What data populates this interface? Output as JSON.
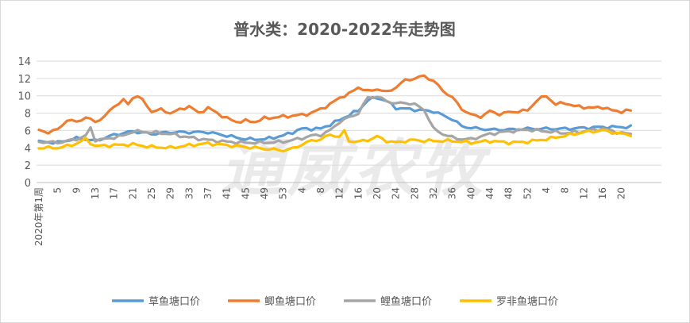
{
  "chart_data": {
    "type": "line",
    "title": "普水类：2020-2022年走势图",
    "watermark": "通威农牧",
    "first_week_label": "2020年第1周",
    "ylim": [
      0,
      14
    ],
    "yticks": [
      0,
      2,
      4,
      6,
      8,
      10,
      12,
      14
    ],
    "grid": true,
    "legend_position": "bottom",
    "num_points": 133,
    "x_tick_labels": [
      {
        "i": 0,
        "label": "2020年第1周"
      },
      {
        "i": 4,
        "label": "5"
      },
      {
        "i": 8,
        "label": "9"
      },
      {
        "i": 12,
        "label": "13"
      },
      {
        "i": 16,
        "label": "17"
      },
      {
        "i": 20,
        "label": "21"
      },
      {
        "i": 24,
        "label": "25"
      },
      {
        "i": 28,
        "label": "29"
      },
      {
        "i": 32,
        "label": "33"
      },
      {
        "i": 36,
        "label": "37"
      },
      {
        "i": 40,
        "label": "41"
      },
      {
        "i": 44,
        "label": "45"
      },
      {
        "i": 48,
        "label": "49"
      },
      {
        "i": 52,
        "label": "53"
      },
      {
        "i": 56,
        "label": "4"
      },
      {
        "i": 60,
        "label": "8"
      },
      {
        "i": 64,
        "label": "12"
      },
      {
        "i": 68,
        "label": "16"
      },
      {
        "i": 72,
        "label": "20"
      },
      {
        "i": 76,
        "label": "24"
      },
      {
        "i": 80,
        "label": "28"
      },
      {
        "i": 84,
        "label": "32"
      },
      {
        "i": 88,
        "label": "36"
      },
      {
        "i": 92,
        "label": "40"
      },
      {
        "i": 96,
        "label": "44"
      },
      {
        "i": 100,
        "label": "48"
      },
      {
        "i": 104,
        "label": "52"
      },
      {
        "i": 108,
        "label": "4"
      },
      {
        "i": 112,
        "label": "8"
      },
      {
        "i": 116,
        "label": "12"
      },
      {
        "i": 120,
        "label": "16"
      },
      {
        "i": 124,
        "label": "20"
      }
    ],
    "series": [
      {
        "name": "草鱼塘口价",
        "color": "#5b9bd5",
        "anchors": [
          [
            0,
            4.7
          ],
          [
            4,
            4.6
          ],
          [
            8,
            5.1
          ],
          [
            10,
            5.0
          ],
          [
            12,
            4.8
          ],
          [
            16,
            5.5
          ],
          [
            20,
            5.9
          ],
          [
            24,
            5.6
          ],
          [
            28,
            5.8
          ],
          [
            32,
            5.8
          ],
          [
            36,
            5.8
          ],
          [
            40,
            5.4
          ],
          [
            44,
            5.0
          ],
          [
            48,
            5.0
          ],
          [
            52,
            5.4
          ],
          [
            56,
            6.2
          ],
          [
            60,
            6.2
          ],
          [
            64,
            7.2
          ],
          [
            66,
            7.8
          ],
          [
            68,
            8.3
          ],
          [
            70,
            9.5
          ],
          [
            72,
            9.8
          ],
          [
            74,
            9.4
          ],
          [
            76,
            8.6
          ],
          [
            80,
            8.4
          ],
          [
            84,
            8.2
          ],
          [
            88,
            7.3
          ],
          [
            90,
            6.5
          ],
          [
            92,
            6.3
          ],
          [
            96,
            6.1
          ],
          [
            100,
            6.1
          ],
          [
            104,
            6.2
          ],
          [
            108,
            6.2
          ],
          [
            112,
            6.2
          ],
          [
            116,
            6.3
          ],
          [
            120,
            6.4
          ],
          [
            124,
            6.4
          ],
          [
            126,
            6.4
          ]
        ]
      },
      {
        "name": "鲫鱼塘口价",
        "color": "#ed7d31",
        "anchors": [
          [
            0,
            6.0
          ],
          [
            2,
            5.8
          ],
          [
            4,
            6.1
          ],
          [
            6,
            7.2
          ],
          [
            8,
            7.0
          ],
          [
            10,
            7.5
          ],
          [
            12,
            7.0
          ],
          [
            14,
            7.6
          ],
          [
            16,
            8.8
          ],
          [
            18,
            9.5
          ],
          [
            19,
            9.0
          ],
          [
            20,
            9.8
          ],
          [
            21,
            10.0
          ],
          [
            22,
            9.5
          ],
          [
            24,
            8.2
          ],
          [
            26,
            8.4
          ],
          [
            28,
            8.0
          ],
          [
            30,
            8.4
          ],
          [
            32,
            8.8
          ],
          [
            34,
            8.0
          ],
          [
            36,
            8.6
          ],
          [
            38,
            8.0
          ],
          [
            40,
            7.4
          ],
          [
            42,
            7.0
          ],
          [
            44,
            7.1
          ],
          [
            46,
            7.0
          ],
          [
            48,
            7.4
          ],
          [
            52,
            7.6
          ],
          [
            56,
            7.8
          ],
          [
            58,
            8.0
          ],
          [
            60,
            8.5
          ],
          [
            62,
            9.0
          ],
          [
            64,
            9.8
          ],
          [
            66,
            10.2
          ],
          [
            68,
            11.0
          ],
          [
            70,
            10.5
          ],
          [
            72,
            10.8
          ],
          [
            74,
            10.4
          ],
          [
            76,
            11.0
          ],
          [
            78,
            11.8
          ],
          [
            80,
            12.0
          ],
          [
            82,
            12.3
          ],
          [
            84,
            11.7
          ],
          [
            86,
            10.6
          ],
          [
            88,
            9.8
          ],
          [
            90,
            8.5
          ],
          [
            92,
            7.8
          ],
          [
            94,
            7.6
          ],
          [
            96,
            8.2
          ],
          [
            98,
            7.9
          ],
          [
            100,
            8.1
          ],
          [
            102,
            8.2
          ],
          [
            104,
            8.3
          ],
          [
            106,
            9.5
          ],
          [
            108,
            10.0
          ],
          [
            110,
            9.0
          ],
          [
            112,
            9.2
          ],
          [
            114,
            8.8
          ],
          [
            116,
            8.7
          ],
          [
            118,
            8.6
          ],
          [
            120,
            8.7
          ],
          [
            122,
            8.3
          ],
          [
            124,
            8.2
          ],
          [
            126,
            8.3
          ]
        ]
      },
      {
        "name": "鲤鱼塘口价",
        "color": "#a5a5a5",
        "anchors": [
          [
            0,
            4.7
          ],
          [
            4,
            4.6
          ],
          [
            8,
            5.0
          ],
          [
            10,
            5.4
          ],
          [
            11,
            6.3
          ],
          [
            12,
            4.9
          ],
          [
            14,
            5.0
          ],
          [
            16,
            5.2
          ],
          [
            18,
            5.4
          ],
          [
            20,
            5.9
          ],
          [
            24,
            5.8
          ],
          [
            28,
            5.6
          ],
          [
            32,
            5.2
          ],
          [
            36,
            4.9
          ],
          [
            40,
            4.7
          ],
          [
            44,
            4.6
          ],
          [
            48,
            4.6
          ],
          [
            52,
            4.7
          ],
          [
            56,
            5.1
          ],
          [
            58,
            5.4
          ],
          [
            60,
            5.5
          ],
          [
            62,
            6.0
          ],
          [
            64,
            7.0
          ],
          [
            66,
            7.5
          ],
          [
            68,
            8.0
          ],
          [
            70,
            9.8
          ],
          [
            72,
            9.9
          ],
          [
            74,
            9.4
          ],
          [
            76,
            9.1
          ],
          [
            78,
            9.2
          ],
          [
            80,
            9.0
          ],
          [
            82,
            8.4
          ],
          [
            84,
            6.2
          ],
          [
            86,
            5.6
          ],
          [
            88,
            5.2
          ],
          [
            90,
            5.0
          ],
          [
            92,
            5.0
          ],
          [
            96,
            5.6
          ],
          [
            100,
            5.9
          ],
          [
            104,
            6.1
          ],
          [
            108,
            5.9
          ],
          [
            112,
            5.7
          ],
          [
            116,
            5.9
          ],
          [
            120,
            6.2
          ],
          [
            124,
            5.7
          ],
          [
            126,
            5.6
          ]
        ]
      },
      {
        "name": "罗非鱼塘口价",
        "color": "#ffc000",
        "anchors": [
          [
            0,
            4.0
          ],
          [
            4,
            4.0
          ],
          [
            6,
            4.2
          ],
          [
            8,
            4.5
          ],
          [
            10,
            5.0
          ],
          [
            12,
            4.2
          ],
          [
            16,
            4.3
          ],
          [
            20,
            4.4
          ],
          [
            24,
            4.1
          ],
          [
            28,
            4.0
          ],
          [
            32,
            4.3
          ],
          [
            36,
            4.5
          ],
          [
            40,
            4.3
          ],
          [
            44,
            4.1
          ],
          [
            48,
            3.9
          ],
          [
            52,
            3.7
          ],
          [
            54,
            3.9
          ],
          [
            56,
            4.4
          ],
          [
            58,
            4.8
          ],
          [
            60,
            5.0
          ],
          [
            62,
            5.5
          ],
          [
            64,
            5.3
          ],
          [
            65,
            5.9
          ],
          [
            66,
            4.8
          ],
          [
            68,
            4.7
          ],
          [
            70,
            4.9
          ],
          [
            72,
            5.3
          ],
          [
            74,
            4.8
          ],
          [
            76,
            4.6
          ],
          [
            78,
            4.8
          ],
          [
            80,
            4.9
          ],
          [
            82,
            4.8
          ],
          [
            84,
            4.8
          ],
          [
            88,
            4.8
          ],
          [
            92,
            4.6
          ],
          [
            96,
            4.8
          ],
          [
            100,
            4.6
          ],
          [
            104,
            4.7
          ],
          [
            108,
            5.0
          ],
          [
            112,
            5.4
          ],
          [
            116,
            5.8
          ],
          [
            120,
            6.0
          ],
          [
            124,
            5.6
          ],
          [
            126,
            5.5
          ]
        ]
      }
    ]
  }
}
